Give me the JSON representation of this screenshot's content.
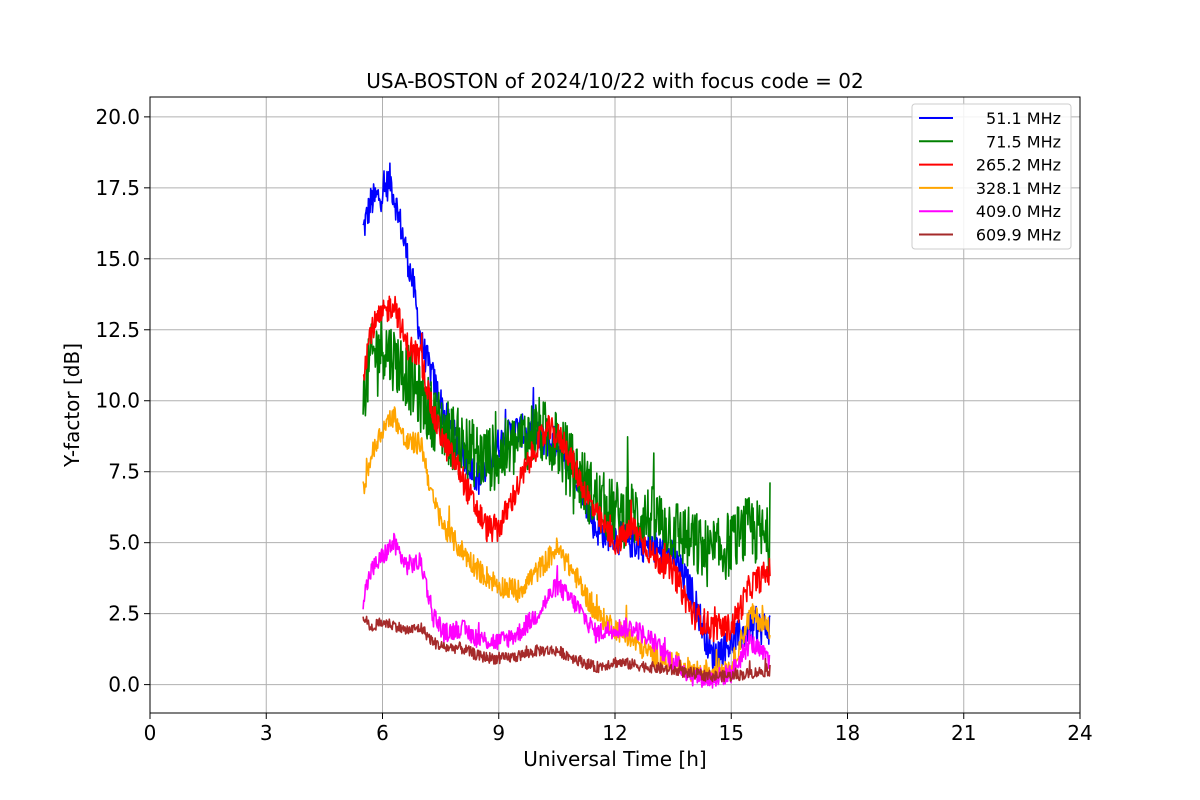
{
  "chart_data": {
    "type": "line",
    "title": "USA-BOSTON of 2024/10/22 with focus code = 02",
    "xlabel": "Universal Time [h]",
    "ylabel": "Y-factor [dB]",
    "xlim": [
      0,
      24
    ],
    "ylim": [
      -1.0,
      20.7
    ],
    "xticks": [
      0,
      3,
      6,
      9,
      12,
      15,
      18,
      21,
      24
    ],
    "xtick_labels": [
      "0",
      "3",
      "6",
      "9",
      "12",
      "15",
      "18",
      "21",
      "24"
    ],
    "yticks": [
      0,
      2.5,
      5,
      7.5,
      10,
      12.5,
      15,
      17.5,
      20
    ],
    "ytick_labels": [
      "0.0",
      "2.5",
      "5.0",
      "7.5",
      "10.0",
      "12.5",
      "15.0",
      "17.5",
      "20.0"
    ],
    "grid": true,
    "legend_position": "top-right",
    "series": [
      {
        "name": "51.1 MHz",
        "color": "#0000ff",
        "noise": 0.6,
        "x": [
          5.5,
          5.7,
          6.0,
          6.2,
          6.5,
          6.8,
          7.0,
          7.3,
          7.6,
          8.0,
          8.5,
          9.0,
          9.5,
          10.0,
          10.5,
          11.0,
          11.5,
          12.0,
          12.5,
          13.0,
          13.5,
          14.0,
          14.5,
          15.0,
          15.5,
          16.0
        ],
        "y": [
          16.0,
          17.0,
          17.3,
          17.8,
          16.0,
          14.0,
          12.0,
          10.8,
          9.5,
          8.3,
          7.2,
          8.5,
          9.0,
          8.7,
          8.5,
          7.5,
          5.5,
          5.2,
          5.0,
          4.8,
          4.5,
          3.2,
          1.0,
          1.5,
          2.0,
          2.0
        ]
      },
      {
        "name": "71.5 MHz",
        "color": "#008000",
        "noise": 1.2,
        "x": [
          5.5,
          5.7,
          6.0,
          6.3,
          6.6,
          7.0,
          7.3,
          7.6,
          8.0,
          8.5,
          9.0,
          9.5,
          10.0,
          10.5,
          11.0,
          11.5,
          12.0,
          12.5,
          13.0,
          13.5,
          14.0,
          14.5,
          15.0,
          15.5,
          16.0
        ],
        "y": [
          10.0,
          11.5,
          12.0,
          11.5,
          11.0,
          10.0,
          9.5,
          9.0,
          8.5,
          8.0,
          8.0,
          8.5,
          9.0,
          8.5,
          7.5,
          6.5,
          6.0,
          6.0,
          5.8,
          5.5,
          5.0,
          4.5,
          5.0,
          5.5,
          5.0
        ]
      },
      {
        "name": "265.2 MHz",
        "color": "#ff0000",
        "noise": 0.5,
        "x": [
          5.5,
          5.7,
          6.0,
          6.3,
          6.6,
          7.0,
          7.3,
          7.6,
          8.0,
          8.3,
          8.7,
          9.0,
          9.5,
          10.0,
          10.3,
          10.7,
          11.0,
          11.5,
          12.0,
          12.5,
          13.0,
          13.5,
          14.0,
          14.5,
          15.0,
          15.5,
          16.0
        ],
        "y": [
          11.0,
          12.5,
          13.0,
          13.5,
          12.0,
          11.5,
          9.5,
          8.5,
          7.5,
          6.5,
          5.5,
          5.5,
          7.0,
          8.5,
          9.0,
          8.5,
          7.5,
          6.0,
          5.0,
          5.5,
          4.5,
          4.0,
          2.5,
          2.0,
          2.0,
          3.5,
          4.0
        ]
      },
      {
        "name": "328.1 MHz",
        "color": "#ffa500",
        "noise": 0.4,
        "x": [
          5.5,
          5.7,
          6.0,
          6.3,
          6.6,
          7.0,
          7.3,
          7.6,
          8.0,
          8.5,
          9.0,
          9.5,
          10.0,
          10.5,
          11.0,
          11.5,
          12.0,
          12.5,
          13.0,
          13.5,
          14.0,
          14.5,
          15.0,
          15.5,
          16.0
        ],
        "y": [
          6.8,
          8.0,
          9.0,
          9.5,
          8.5,
          8.5,
          6.5,
          5.5,
          4.8,
          4.0,
          3.5,
          3.3,
          4.0,
          4.8,
          3.8,
          2.5,
          2.0,
          1.5,
          1.0,
          0.8,
          0.5,
          0.5,
          0.6,
          2.5,
          2.0
        ]
      },
      {
        "name": "409.0 MHz",
        "color": "#ff00ff",
        "noise": 0.35,
        "x": [
          5.5,
          5.7,
          6.0,
          6.3,
          6.6,
          7.0,
          7.3,
          7.6,
          8.0,
          8.5,
          9.0,
          9.5,
          10.0,
          10.5,
          11.0,
          11.5,
          12.0,
          12.5,
          13.0,
          13.5,
          14.0,
          14.5,
          15.0,
          15.5,
          16.0
        ],
        "y": [
          3.0,
          4.0,
          4.5,
          5.0,
          4.2,
          4.3,
          2.5,
          1.8,
          2.0,
          1.6,
          1.5,
          1.8,
          2.5,
          3.5,
          2.8,
          1.8,
          2.0,
          2.0,
          1.5,
          0.8,
          0.3,
          0.2,
          0.4,
          1.5,
          0.8
        ]
      },
      {
        "name": "609.9 MHz",
        "color": "#a52a2a",
        "noise": 0.2,
        "x": [
          5.5,
          5.7,
          6.0,
          6.3,
          6.6,
          7.0,
          7.3,
          7.6,
          8.0,
          8.5,
          9.0,
          9.5,
          10.0,
          10.5,
          11.0,
          11.5,
          12.0,
          12.5,
          13.0,
          13.5,
          14.0,
          14.5,
          15.0,
          15.5,
          16.0
        ],
        "y": [
          2.4,
          2.0,
          2.2,
          2.1,
          1.9,
          2.0,
          1.5,
          1.3,
          1.3,
          1.0,
          0.9,
          1.0,
          1.2,
          1.2,
          0.9,
          0.6,
          0.8,
          0.7,
          0.6,
          0.5,
          0.4,
          0.3,
          0.3,
          0.4,
          0.5
        ]
      }
    ]
  }
}
